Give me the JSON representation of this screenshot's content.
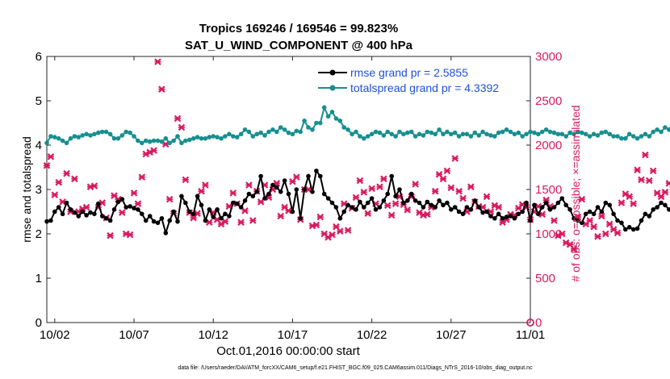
{
  "chart_data": {
    "type": "line",
    "title_line1": "Tropics 169246 / 169546 = 99.823%",
    "title_line2": "SAT_U_WIND_COMPONENT @ 400 hPa",
    "ylabel_left": "rmse and totalspread",
    "ylabel_right": "# of obs: o=possible; ×=assimilated",
    "xlabel": "Oct.01,2016 00:00:00 start",
    "footnote": "data file: /Users/raeder/DAI/ATM_forcXX/CAM6_setup/f.e21.FHIST_BGC.f09_025.CAM6assim.011/Diags_NTrS_2016-10/obs_diag_output.nc",
    "x_ticks": [
      "10/02",
      "10/07",
      "10/12",
      "10/17",
      "10/22",
      "10/27",
      "11/01"
    ],
    "x_tick_days": [
      2,
      7,
      12,
      17,
      22,
      27,
      32
    ],
    "xlim": [
      1.5,
      32
    ],
    "ylim_left": [
      0,
      6
    ],
    "yticks_left": [
      "0",
      "1",
      "2",
      "3",
      "4",
      "5",
      "6"
    ],
    "ylim_right": [
      0,
      3000
    ],
    "yticks_right": [
      "0",
      "500",
      "1000",
      "1500",
      "2000",
      "2500",
      "3000"
    ],
    "legend": {
      "placement": "top-right",
      "entries": [
        "rmse grand pr = 2.5855",
        "totalspread grand pr = 4.3392"
      ]
    },
    "colors": {
      "rmse": "#000000",
      "totalspread": "#178f8f",
      "obs": "#d81b60",
      "legend_text": "#1f4fe0"
    },
    "series": [
      {
        "name": "rmse grand pr = 2.5855",
        "axis": "left",
        "x_start_day": 1.5,
        "x_step_days": 0.25,
        "values": [
          2.28,
          2.3,
          2.5,
          2.6,
          2.45,
          2.7,
          2.55,
          2.48,
          2.4,
          2.5,
          2.42,
          2.48,
          2.45,
          2.68,
          2.4,
          2.35,
          2.3,
          2.55,
          2.72,
          2.78,
          2.6,
          2.62,
          2.58,
          2.55,
          2.45,
          2.3,
          2.4,
          2.28,
          2.25,
          2.35,
          2.02,
          2.3,
          2.5,
          2.28,
          2.85,
          2.7,
          2.5,
          2.45,
          2.85,
          2.65,
          2.3,
          2.55,
          2.38,
          2.55,
          2.35,
          2.45,
          2.4,
          2.7,
          2.68,
          2.6,
          2.75,
          2.9,
          2.85,
          2.95,
          3.3,
          2.8,
          2.9,
          3.1,
          3.05,
          2.95,
          3.2,
          2.9,
          2.5,
          3.0,
          2.35,
          3.0,
          3.3,
          2.95,
          3.42,
          3.3,
          2.9,
          2.8,
          2.7,
          2.6,
          2.35,
          2.5,
          2.65,
          2.6,
          2.55,
          2.72,
          2.6,
          2.7,
          2.8,
          2.55,
          2.6,
          2.75,
          2.9,
          3.3,
          2.85,
          3.0,
          2.7,
          2.75,
          2.9,
          2.75,
          2.7,
          2.6,
          2.72,
          2.65,
          2.6,
          2.75,
          2.65,
          2.7,
          2.55,
          2.6,
          2.5,
          2.45,
          2.6,
          2.55,
          2.75,
          2.6,
          2.48,
          2.5,
          2.4,
          2.35,
          2.45,
          2.35,
          2.38,
          2.4,
          2.35,
          2.45,
          2.5,
          2.7,
          2.3,
          2.65,
          2.45,
          2.6,
          2.7,
          2.55,
          2.6,
          2.7,
          2.8,
          2.65,
          2.55,
          2.35,
          2.3,
          2.25,
          2.45,
          2.5,
          2.45,
          2.6,
          2.5,
          2.7,
          2.65,
          2.45,
          2.3,
          2.25,
          2.1,
          2.15,
          2.1,
          2.12,
          2.3,
          2.45,
          2.4,
          2.55,
          2.6,
          2.7,
          2.65,
          2.55,
          2.5,
          2.45,
          2.5,
          2.55,
          2.65,
          2.7,
          2.95,
          2.9,
          2.6,
          3.5,
          2.7,
          2.55,
          2.65,
          2.8,
          2.75,
          2.7
        ]
      },
      {
        "name": "totalspread grand pr = 4.3392",
        "axis": "left",
        "x_start_day": 1.5,
        "x_step_days": 0.25,
        "values": [
          4.05,
          4.2,
          4.18,
          4.15,
          4.1,
          4.05,
          4.15,
          4.2,
          4.18,
          4.22,
          4.25,
          4.22,
          4.25,
          4.28,
          4.3,
          4.3,
          4.25,
          4.15,
          4.15,
          4.22,
          4.3,
          4.28,
          4.2,
          4.1,
          4.05,
          4.1,
          4.08,
          4.1,
          4.1,
          4.08,
          4.15,
          4.05,
          4.1,
          4.2,
          4.05,
          4.1,
          4.12,
          4.15,
          4.18,
          4.15,
          4.15,
          4.18,
          4.2,
          4.18,
          4.15,
          4.2,
          4.25,
          4.2,
          4.18,
          4.25,
          4.35,
          4.3,
          4.2,
          4.25,
          4.28,
          4.22,
          4.3,
          4.35,
          4.3,
          4.4,
          4.35,
          4.28,
          4.25,
          4.32,
          4.3,
          4.55,
          4.4,
          4.35,
          4.5,
          4.5,
          4.85,
          4.65,
          4.75,
          4.6,
          4.55,
          4.4,
          4.35,
          4.25,
          4.3,
          4.2,
          4.15,
          4.2,
          4.25,
          4.3,
          4.28,
          4.22,
          4.3,
          4.25,
          4.2,
          4.3,
          4.25,
          4.28,
          4.3,
          4.2,
          4.25,
          4.22,
          4.3,
          4.28,
          4.25,
          4.35,
          4.25,
          4.3,
          4.25,
          4.28,
          4.2,
          4.25,
          4.25,
          4.2,
          4.28,
          4.22,
          4.3,
          4.25,
          4.22,
          4.2,
          4.28,
          4.3,
          4.35,
          4.3,
          4.25,
          4.28,
          4.2,
          4.25,
          4.3,
          4.28,
          4.25,
          4.3,
          4.35,
          4.3,
          4.28,
          4.25,
          4.25,
          4.2,
          4.28,
          4.25,
          4.3,
          4.28,
          4.25,
          4.2,
          4.25,
          4.22,
          4.28,
          4.3,
          4.25,
          4.2,
          4.2,
          4.15,
          4.15,
          4.25,
          4.2,
          4.15,
          4.2,
          4.25,
          4.2,
          4.3,
          4.35,
          4.3,
          4.4,
          4.35,
          4.5,
          4.45,
          4.6,
          4.45,
          4.5,
          4.7,
          4.6,
          4.5,
          4.4,
          4.45,
          4.7,
          4.7,
          4.4,
          4.5,
          4.55,
          4.7,
          4.8
        ]
      },
      {
        "name": "assimilated",
        "axis": "right",
        "x_start_day": 1.5,
        "x_step_days": 0.25,
        "values": [
          1770,
          1870,
          1440,
          1580,
          1360,
          1680,
          1250,
          1620,
          1250,
          1280,
          1300,
          1530,
          1540,
          1300,
          1350,
          1180,
          980,
          1430,
          1390,
          1240,
          1000,
          990,
          1460,
          1340,
          1640,
          1900,
          1920,
          1940,
          2940,
          2630,
          2010,
          1390,
          1230,
          2300,
          2200,
          1610,
          1240,
          1180,
          1230,
          1480,
          1550,
          1130,
          1240,
          1160,
          1110,
          1140,
          1310,
          1460,
          1340,
          1130,
          1260,
          1550,
          1150,
          1480,
          1360,
          1550,
          1410,
          1500,
          1570,
          1200,
          1300,
          1260,
          1590,
          1640,
          1160,
          1500,
          1500,
          1090,
          1100,
          1190,
          1000,
          960,
          990,
          1080,
          1030,
          1340,
          1040,
          1290,
          1410,
          1600,
          1470,
          1230,
          1510,
          1340,
          1530,
          1620,
          1320,
          1210,
          1340,
          1420,
          1330,
          1270,
          1420,
          1560,
          1240,
          1210,
          1220,
          1300,
          1480,
          1670,
          1620,
          1710,
          1520,
          1850,
          1480,
          1400,
          1250,
          1530,
          1360,
          1310,
          1300,
          1420,
          1250,
          1320,
          1300,
          1130,
          1160,
          1220,
          1210,
          1290,
          1330,
          1300,
          1160,
          1250,
          1310,
          1220,
          1380,
          1310,
          1150,
          980,
          1000,
          900,
          880,
          830,
          1190,
          1390,
          1110,
          1150,
          1080,
          970,
          1200,
          1000,
          1110,
          1050,
          1010,
          1350,
          1450,
          1420,
          1340,
          1720,
          1610,
          1890,
          1600,
          1710,
          1460,
          1420,
          1470,
          1570,
          1530,
          1670,
          1780,
          1510,
          1740,
          1650,
          1770,
          1790,
          1820,
          1340,
          1400,
          1290,
          1300,
          1360,
          1300,
          850,
          830,
          810
        ]
      }
    ]
  }
}
